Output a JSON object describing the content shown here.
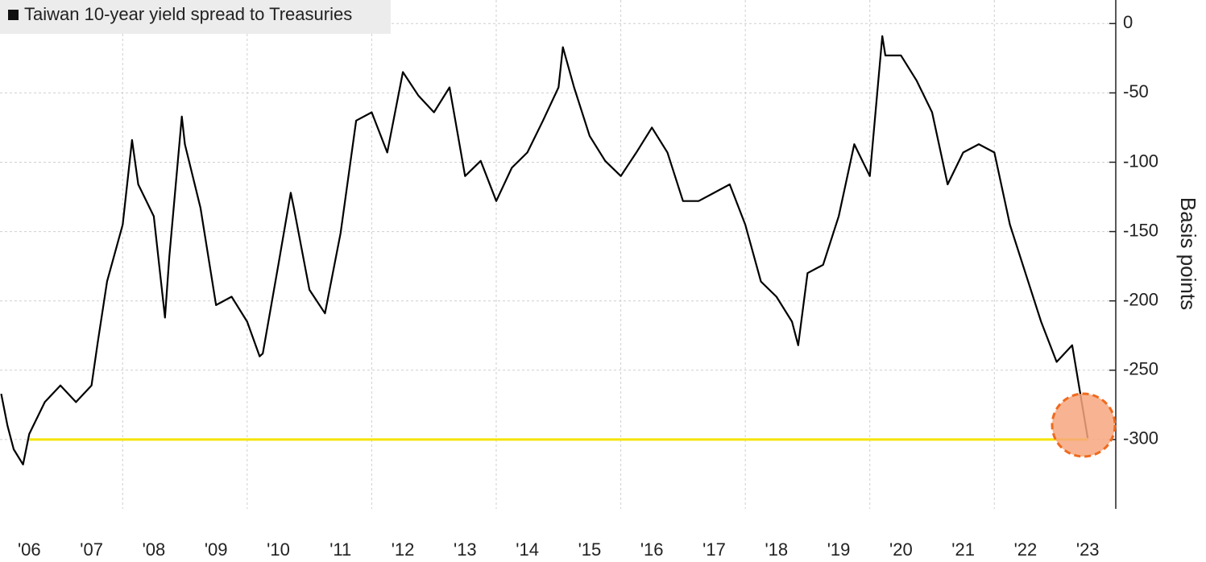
{
  "chart_data": {
    "type": "line",
    "ylabel": "Basis points",
    "x": [
      2006.05,
      2006.15,
      2006.25,
      2006.4,
      2006.5,
      2006.75,
      2007.0,
      2007.25,
      2007.5,
      2007.6,
      2007.75,
      2008.0,
      2008.15,
      2008.25,
      2008.5,
      2008.68,
      2008.75,
      2008.95,
      2009.0,
      2009.25,
      2009.5,
      2009.75,
      2010.0,
      2010.2,
      2010.25,
      2010.5,
      2010.7,
      2010.75,
      2011.0,
      2011.25,
      2011.5,
      2011.75,
      2012.0,
      2012.25,
      2012.5,
      2012.75,
      2013.0,
      2013.25,
      2013.5,
      2013.75,
      2014.0,
      2014.25,
      2014.5,
      2014.75,
      2015.0,
      2015.07,
      2015.25,
      2015.5,
      2015.75,
      2016.0,
      2016.25,
      2016.5,
      2016.75,
      2017.0,
      2017.25,
      2017.5,
      2017.75,
      2018.0,
      2018.25,
      2018.5,
      2018.75,
      2018.85,
      2019.0,
      2019.25,
      2019.5,
      2019.75,
      2020.0,
      2020.2,
      2020.25,
      2020.5,
      2020.75,
      2021.0,
      2021.25,
      2021.5,
      2021.75,
      2022.0,
      2022.25,
      2022.5,
      2022.75,
      2023.0,
      2023.25,
      2023.5
    ],
    "series": [
      {
        "name": "Taiwan 10-year yield spread to Treasuries",
        "color": "#000000",
        "values": [
          -267,
          -290,
          -307,
          -318,
          -296,
          -273,
          -261,
          -273,
          -261,
          -230,
          -186,
          -145,
          -84,
          -116,
          -139,
          -212,
          -168,
          -67,
          -87,
          -133,
          -203,
          -197,
          -215,
          -240,
          -238,
          -174,
          -122,
          -133,
          -192,
          -209,
          -151,
          -70,
          -64,
          -93,
          -35,
          -52,
          -64,
          -46,
          -110,
          -99,
          -128,
          -104,
          -93,
          -70,
          -46,
          -17,
          -46,
          -81,
          -99,
          -110,
          -93,
          -75,
          -93,
          -128,
          -128,
          -122,
          -116,
          -145,
          -186,
          -197,
          -215,
          -232,
          -180,
          -174,
          -139,
          -87,
          -110,
          -9,
          -23,
          -23,
          -41,
          -64,
          -116,
          -93,
          -87,
          -93,
          -145,
          -180,
          -215,
          -244,
          -232,
          -299
        ]
      }
    ],
    "hline": {
      "value": -300,
      "color": "#f5e400"
    },
    "xlim": [
      2006.03,
      2023.95
    ],
    "ylim": [
      -350,
      17
    ],
    "xticks": [
      {
        "value": 2006.5,
        "label": "'06"
      },
      {
        "value": 2007.5,
        "label": "'07"
      },
      {
        "value": 2008.5,
        "label": "'08"
      },
      {
        "value": 2009.5,
        "label": "'09"
      },
      {
        "value": 2010.5,
        "label": "'10"
      },
      {
        "value": 2011.5,
        "label": "'11"
      },
      {
        "value": 2012.5,
        "label": "'12"
      },
      {
        "value": 2013.5,
        "label": "'13"
      },
      {
        "value": 2014.5,
        "label": "'14"
      },
      {
        "value": 2015.5,
        "label": "'15"
      },
      {
        "value": 2016.5,
        "label": "'16"
      },
      {
        "value": 2017.5,
        "label": "'17"
      },
      {
        "value": 2018.5,
        "label": "'18"
      },
      {
        "value": 2019.5,
        "label": "'19"
      },
      {
        "value": 2020.5,
        "label": "'20"
      },
      {
        "value": 2021.5,
        "label": "'21"
      },
      {
        "value": 2022.5,
        "label": "'22"
      },
      {
        "value": 2023.5,
        "label": "'23"
      }
    ],
    "xgrid": [
      2008,
      2010,
      2012,
      2014,
      2016,
      2018,
      2020,
      2022
    ],
    "yticks": [
      0,
      -50,
      -100,
      -150,
      -200,
      -250,
      -300
    ],
    "grid": true
  }
}
